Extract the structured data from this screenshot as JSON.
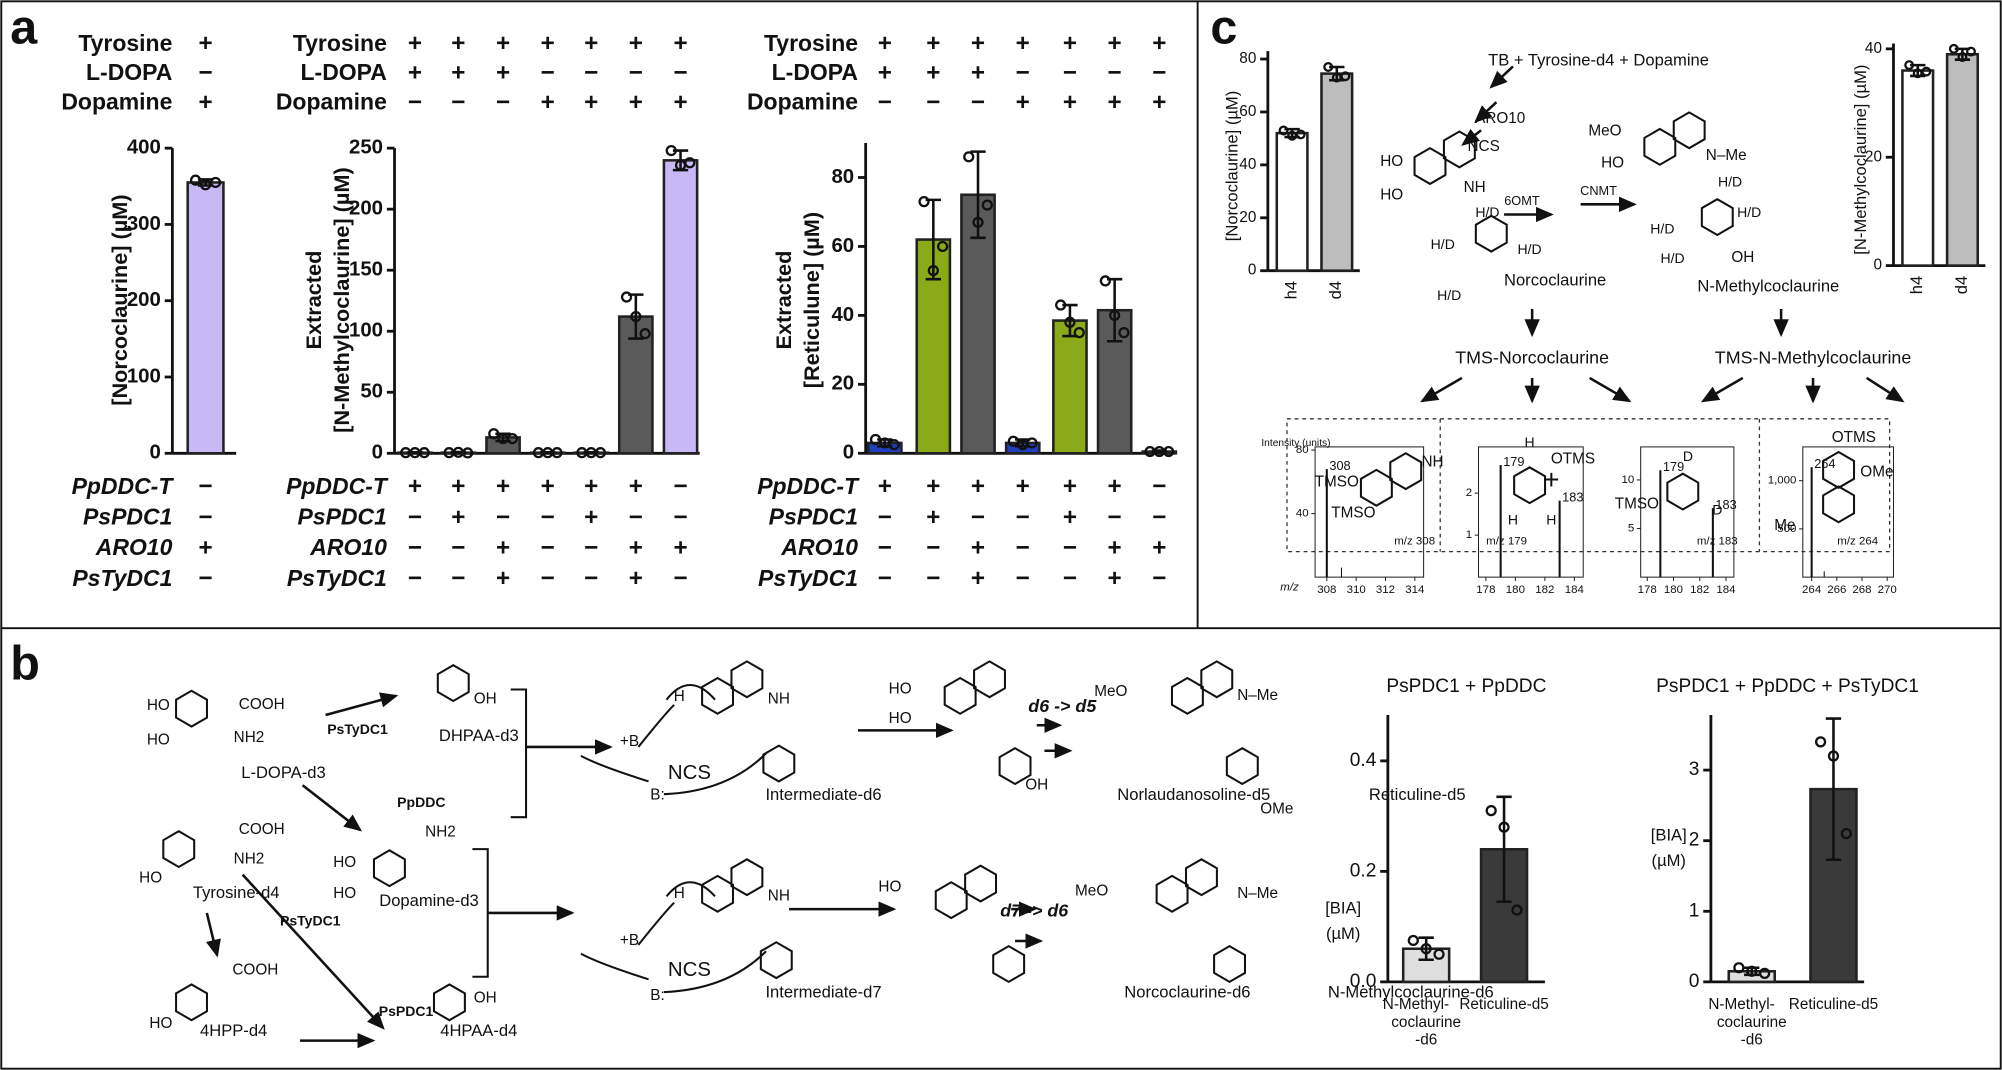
{
  "panel_labels": [
    "a",
    "b",
    "c"
  ],
  "chart_data": [
    {
      "type": "bar",
      "ylabel": [
        "[Norcoclaurine] (µM)"
      ],
      "ylim": [
        0,
        400
      ],
      "yticks": [
        0,
        100,
        200,
        300,
        400
      ],
      "values": [
        355
      ],
      "errors": [
        4
      ],
      "points": [
        [
          358,
          352,
          355
        ]
      ],
      "colors": [
        "#c9b8f6"
      ],
      "conditions_top": [
        {
          "name": "Tyrosine",
          "marks": [
            "+"
          ]
        },
        {
          "name": "L-DOPA",
          "marks": [
            "−"
          ]
        },
        {
          "name": "Dopamine",
          "marks": [
            "+"
          ]
        }
      ],
      "conditions_bottom": [
        {
          "name": "PpDDC-T",
          "marks": [
            "−"
          ]
        },
        {
          "name": "PsPDC1",
          "marks": [
            "−"
          ]
        },
        {
          "name": "ARO10",
          "marks": [
            "+"
          ]
        },
        {
          "name": "PsTyDC1",
          "marks": [
            "−"
          ]
        }
      ]
    },
    {
      "type": "bar",
      "ylabel": [
        "Extracted",
        "[N-Methylcoclaurine] (µM)"
      ],
      "ylim": [
        0,
        250
      ],
      "yticks": [
        0,
        50,
        100,
        150,
        200,
        250
      ],
      "values": [
        0.5,
        0.5,
        13,
        0.5,
        0.5,
        112,
        240
      ],
      "errors": [
        0.3,
        0.5,
        3,
        0.3,
        0.3,
        18,
        8
      ],
      "points": [
        [
          0.5,
          0.5,
          0.5
        ],
        [
          0.5,
          0.8,
          0.3
        ],
        [
          16,
          12,
          12
        ],
        [
          0.5,
          0.5,
          0.5
        ],
        [
          0.5,
          0.5,
          0.5
        ],
        [
          128,
          112,
          98
        ],
        [
          248,
          236,
          238
        ]
      ],
      "colors": [
        "#5a5a5a",
        "#5a5a5a",
        "#5a5a5a",
        "#5a5a5a",
        "#5a5a5a",
        "#5a5a5a",
        "#c9b8f6"
      ],
      "conditions_top": [
        {
          "name": "Tyrosine",
          "marks": [
            "+",
            "+",
            "+",
            "+",
            "+",
            "+",
            "+"
          ]
        },
        {
          "name": "L-DOPA",
          "marks": [
            "+",
            "+",
            "+",
            "−",
            "−",
            "−",
            "−"
          ]
        },
        {
          "name": "Dopamine",
          "marks": [
            "−",
            "−",
            "−",
            "+",
            "+",
            "+",
            "+"
          ]
        }
      ],
      "conditions_bottom": [
        {
          "name": "PpDDC-T",
          "marks": [
            "+",
            "+",
            "+",
            "+",
            "+",
            "+",
            "−"
          ]
        },
        {
          "name": "PsPDC1",
          "marks": [
            "−",
            "+",
            "−",
            "−",
            "+",
            "−",
            "−"
          ]
        },
        {
          "name": "ARO10",
          "marks": [
            "−",
            "−",
            "+",
            "−",
            "−",
            "+",
            "+"
          ]
        },
        {
          "name": "PsTyDC1",
          "marks": [
            "−",
            "−",
            "+",
            "−",
            "−",
            "+",
            "−"
          ]
        }
      ]
    },
    {
      "type": "bar",
      "ylabel": [
        "Extracted",
        "[Reticulune] (µM)"
      ],
      "ylim": [
        0,
        90
      ],
      "yticks": [
        0,
        20,
        40,
        60,
        80
      ],
      "values": [
        3,
        62,
        75,
        3,
        38.5,
        41.5,
        0.5
      ],
      "errors": [
        1,
        11.5,
        12.5,
        1,
        4.5,
        9,
        0.3
      ],
      "points": [
        [
          4,
          3,
          2.5
        ],
        [
          73,
          53,
          60
        ],
        [
          86,
          67,
          72
        ],
        [
          3.5,
          2.5,
          3
        ],
        [
          43,
          38,
          35
        ],
        [
          50,
          40,
          35
        ],
        [
          0.5,
          0.5,
          0.5
        ]
      ],
      "colors": [
        "#1f3fbf",
        "#8aaa1a",
        "#5a5a5a",
        "#1f3fbf",
        "#8aaa1a",
        "#5a5a5a",
        "#5a5a5a"
      ],
      "conditions_top": [
        {
          "name": "Tyrosine",
          "marks": [
            "+",
            "+",
            "+",
            "+",
            "+",
            "+",
            "+"
          ]
        },
        {
          "name": "L-DOPA",
          "marks": [
            "+",
            "+",
            "+",
            "−",
            "−",
            "−",
            "−"
          ]
        },
        {
          "name": "Dopamine",
          "marks": [
            "−",
            "−",
            "−",
            "+",
            "+",
            "+",
            "+"
          ]
        }
      ],
      "conditions_bottom": [
        {
          "name": "PpDDC-T",
          "marks": [
            "+",
            "+",
            "+",
            "+",
            "+",
            "+",
            "−"
          ]
        },
        {
          "name": "PsPDC1",
          "marks": [
            "−",
            "+",
            "−",
            "−",
            "+",
            "−",
            "−"
          ]
        },
        {
          "name": "ARO10",
          "marks": [
            "−",
            "−",
            "+",
            "−",
            "−",
            "+",
            "+"
          ]
        },
        {
          "name": "PsTyDC1",
          "marks": [
            "−",
            "−",
            "+",
            "−",
            "−",
            "+",
            "−"
          ]
        }
      ]
    },
    {
      "type": "bar",
      "ylabel": [
        "[Norcoclaurine] (µM)"
      ],
      "ylim": [
        0,
        83
      ],
      "yticks": [
        0,
        20,
        40,
        60,
        80
      ],
      "categories": [
        "h4",
        "d4"
      ],
      "values": [
        52,
        74.5
      ],
      "errors": [
        1.5,
        2.5
      ],
      "points": [
        [
          53,
          51,
          51.5
        ],
        [
          77,
          73,
          73.5
        ]
      ],
      "colors": [
        "#ffffff",
        "#bdbdbd"
      ]
    },
    {
      "type": "bar",
      "ylabel": [
        "[N-Methylcoclaurine] (µM)"
      ],
      "ylim": [
        0,
        41
      ],
      "yticks": [
        0,
        20,
        40
      ],
      "categories": [
        "h4",
        "d4"
      ],
      "values": [
        36,
        39
      ],
      "errors": [
        1,
        1
      ],
      "points": [
        [
          37,
          35.5,
          35.8
        ],
        [
          40,
          38.5,
          39.5
        ]
      ],
      "colors": [
        "#ffffff",
        "#bdbdbd"
      ]
    },
    {
      "type": "stem",
      "xlim": [
        307.2,
        314.6
      ],
      "xticks": [
        308,
        310,
        312,
        314
      ],
      "ylim": [
        0,
        82
      ],
      "yticks": [
        40,
        80
      ],
      "x": [
        308,
        309
      ],
      "values": [
        68,
        6
      ],
      "labeled": [
        true,
        false
      ]
    },
    {
      "type": "stem",
      "xlim": [
        177.5,
        184.6
      ],
      "xticks": [
        178,
        180,
        182,
        184
      ],
      "ylim": [
        0,
        3.1
      ],
      "yticks": [
        1,
        2
      ],
      "x": [
        179,
        183
      ],
      "values": [
        2.67,
        1.82
      ],
      "labeled": [
        true,
        true
      ]
    },
    {
      "type": "stem",
      "xlim": [
        177.5,
        184.6
      ],
      "xticks": [
        178,
        180,
        182,
        184
      ],
      "ylim": [
        0,
        13.4
      ],
      "yticks": [
        5,
        10
      ],
      "x": [
        179,
        183
      ],
      "values": [
        11,
        7.1
      ],
      "labeled": [
        true,
        true
      ]
    },
    {
      "type": "stem",
      "xlim": [
        263.3,
        270.5
      ],
      "xticks": [
        264,
        266,
        268,
        270
      ],
      "ylim": [
        0,
        1350
      ],
      "yticks": [
        500,
        {
          "value": 1000,
          "label": "1,000"
        }
      ],
      "x": [
        264,
        265
      ],
      "values": [
        1140,
        60
      ],
      "labeled": [
        true,
        false
      ]
    },
    {
      "type": "bar",
      "title": "PsPDC1 + PpDDC",
      "ylabel": [
        "[BIA]",
        "(µM)"
      ],
      "ylim": [
        0,
        0.483
      ],
      "yticks": [
        {
          "value": 0,
          "label": "0.0"
        },
        0.2,
        0.4
      ],
      "categories": [
        [
          "N-Methyl-",
          "coclaurine",
          "-d6"
        ],
        [
          "Reticuline-d5"
        ]
      ],
      "values": [
        0.06,
        0.24
      ],
      "errors": [
        0.02,
        0.095
      ],
      "points": [
        [
          0.075,
          0.06,
          0.05
        ],
        [
          0.31,
          0.28,
          0.13
        ]
      ],
      "colors": [
        "#dedede",
        "#3a3a3a"
      ]
    },
    {
      "type": "bar",
      "title": "PsPDC1 + PpDDC + PsTyDC1",
      "ylabel": [
        "[BIA]",
        "(µM)"
      ],
      "ylim": [
        0,
        3.78
      ],
      "yticks": [
        0,
        1,
        2,
        3
      ],
      "categories": [
        [
          "N-Methyl-",
          "coclaurine",
          "-d6"
        ],
        [
          "Reticuline-d5"
        ]
      ],
      "values": [
        0.15,
        2.73
      ],
      "errors": [
        0.05,
        1.0
      ],
      "points": [
        [
          0.2,
          0.15,
          0.12
        ],
        [
          3.4,
          3.2,
          2.1
        ]
      ],
      "colors": [
        "#dedede",
        "#3a3a3a"
      ]
    }
  ],
  "diagram_b": {
    "labels": [
      "L-DOPA-d3",
      "PsTyDC1",
      "DHPAA-d3",
      "PpDDC",
      "Dopamine-d3",
      "Tyrosine-d4",
      "PsTyDC1",
      "4HPP-d4",
      "PsPDC1",
      "4HPAA-d4",
      "Intermediate-d6",
      "d6 -> d5",
      "Norlaudanosoline-d5",
      "Reticuline-d5",
      "Intermediate-d7",
      "d7 -> d6",
      "Norcoclaurine-d6",
      "N-Methylcoclaurine-d6",
      "NCS",
      "NCS",
      "COOH",
      "NH2",
      "HO",
      "HO",
      "COOH",
      "NH2",
      "HO",
      "COOH",
      "HO",
      "OH",
      "OH",
      "NH2",
      "HO",
      "HO",
      "+B",
      "B:",
      "H",
      "+B",
      "B:",
      "H",
      "NH",
      "NH",
      "N–Me",
      "N–Me",
      "MeO",
      "MeO",
      "OMe",
      "HO",
      "HO",
      "HO",
      "OH"
    ]
  },
  "diagram_c": {
    "labels": [
      "TB + Tyrosine-d4 + Dopamine",
      "ARO10",
      "NCS",
      "6OMT",
      "CNMT",
      "Norcoclaurine",
      "N-Methylcoclaurine",
      "TMS-Norcoclaurine",
      "TMS-N-Methylcoclaurine",
      "+",
      "m/z 308",
      "m/z 179",
      "m/z 183",
      "m/z 264",
      "Intensity (units)",
      "m/z",
      "HO",
      "HO",
      "NH",
      "H/D",
      "H/D",
      "H/D",
      "H/D",
      "MeO",
      "HO",
      "N–Me",
      "H/D",
      "H/D",
      "H/D",
      "H/D",
      "OH",
      "TMSO",
      "TMSO",
      "NH",
      "H",
      "OTMS",
      "H",
      "H",
      "TMSO",
      "D",
      "D",
      "OTMS",
      "OMe",
      "Me"
    ]
  }
}
